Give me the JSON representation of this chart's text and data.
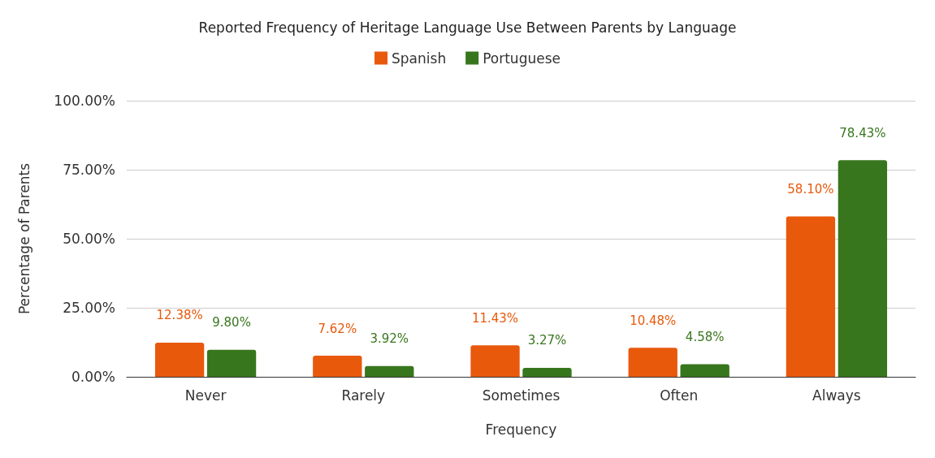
{
  "chart_data": {
    "type": "bar",
    "title": "Reported Frequency of Heritage Language Use Between Parents by Language",
    "xlabel": "Frequency",
    "ylabel": "Percentage of Parents",
    "categories": [
      "Never",
      "Rarely",
      "Sometimes",
      "Often",
      "Always"
    ],
    "series": [
      {
        "name": "Spanish",
        "color": "#e8590c",
        "values": [
          12.38,
          7.62,
          11.43,
          10.48,
          58.1
        ],
        "value_labels": [
          "12.38%",
          "7.62%",
          "11.43%",
          "10.48%",
          "58.10%"
        ]
      },
      {
        "name": "Portuguese",
        "color": "#38761d",
        "values": [
          9.8,
          3.92,
          3.27,
          4.58,
          78.43
        ],
        "value_labels": [
          "9.80%",
          "3.92%",
          "3.27%",
          "4.58%",
          "78.43%"
        ]
      }
    ],
    "ylim": [
      0,
      100
    ],
    "yticks": [
      {
        "value": 0,
        "label": "0.00%"
      },
      {
        "value": 25,
        "label": "25.00%"
      },
      {
        "value": 50,
        "label": "50.00%"
      },
      {
        "value": 75,
        "label": "75.00%"
      },
      {
        "value": 100,
        "label": "100.00%"
      }
    ],
    "grid": "y",
    "legend": "top"
  }
}
